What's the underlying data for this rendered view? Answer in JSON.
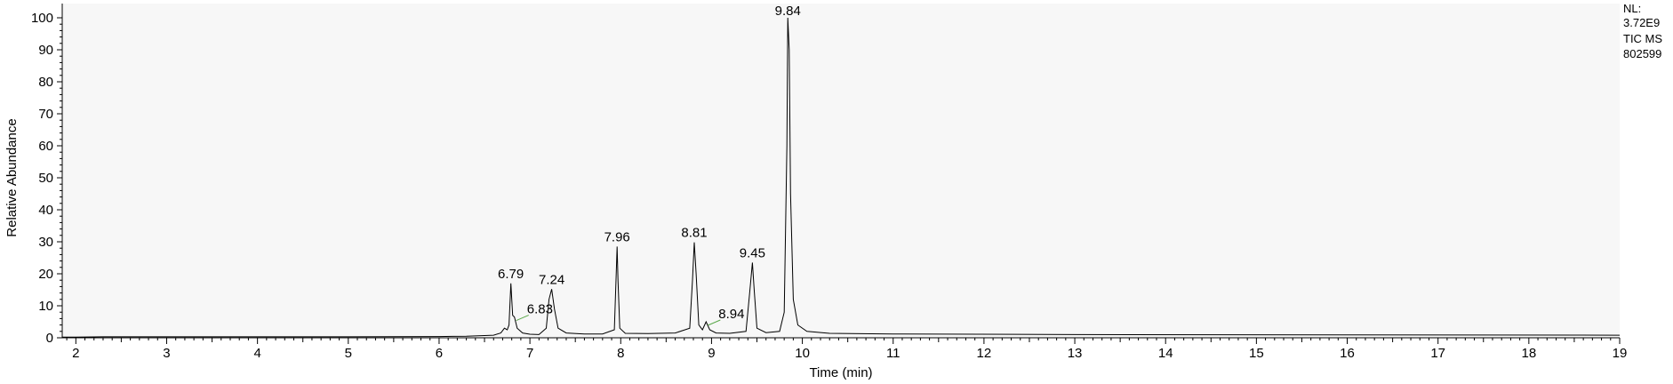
{
  "info": {
    "nl_label": "NL:",
    "nl_value": "3.72E9",
    "trace": "TIC  MS",
    "sample": "802599"
  },
  "chart_data": {
    "type": "line",
    "title": "",
    "xlabel": "Time (min)",
    "ylabel": "Relative Abundance",
    "xlim": [
      1.85,
      19.0
    ],
    "ylim": [
      0,
      100
    ],
    "x_ticks": [
      2,
      3,
      4,
      5,
      6,
      7,
      8,
      9,
      10,
      11,
      12,
      13,
      14,
      15,
      16,
      17,
      18,
      19
    ],
    "y_ticks": [
      0,
      10,
      20,
      30,
      40,
      50,
      60,
      70,
      80,
      90,
      100
    ],
    "grid": false,
    "background_color": "#f7f7f7",
    "trace_color": "#000000",
    "annotation_marker_color": "#5aa84a",
    "peaks": [
      {
        "x": 6.79,
        "y": 17.0,
        "label": "6.79"
      },
      {
        "x": 6.83,
        "y": 6.5,
        "label": "6.83"
      },
      {
        "x": 7.24,
        "y": 15.2,
        "label": "7.24"
      },
      {
        "x": 7.96,
        "y": 28.5,
        "label": "7.96"
      },
      {
        "x": 8.81,
        "y": 29.8,
        "label": "8.81"
      },
      {
        "x": 8.94,
        "y": 5.0,
        "label": "8.94"
      },
      {
        "x": 9.45,
        "y": 23.5,
        "label": "9.45"
      },
      {
        "x": 9.84,
        "y": 100.0,
        "label": "9.84"
      }
    ],
    "series": [
      {
        "x": [
          1.85,
          2.0,
          2.3,
          3.0,
          4.0,
          5.0,
          6.0,
          6.3,
          6.6,
          6.68,
          6.72,
          6.75,
          6.77,
          6.79,
          6.81,
          6.83,
          6.86,
          6.92,
          7.0,
          7.1,
          7.18,
          7.21,
          7.24,
          7.27,
          7.31,
          7.4,
          7.6,
          7.8,
          7.93,
          7.95,
          7.96,
          7.97,
          7.99,
          8.05,
          8.3,
          8.6,
          8.76,
          8.79,
          8.81,
          8.83,
          8.86,
          8.9,
          8.94,
          8.98,
          9.05,
          9.2,
          9.38,
          9.42,
          9.45,
          9.47,
          9.5,
          9.6,
          9.75,
          9.8,
          9.83,
          9.84,
          9.855,
          9.87,
          9.9,
          9.95,
          10.05,
          10.3,
          11.0,
          13.0,
          16.0,
          19.0
        ],
        "y": [
          0.2,
          0.2,
          0.3,
          0.3,
          0.3,
          0.3,
          0.4,
          0.5,
          0.8,
          1.5,
          3.0,
          2.5,
          4.0,
          17.0,
          7.0,
          6.5,
          3.0,
          1.5,
          1.1,
          1.0,
          3.0,
          12.0,
          15.2,
          9.0,
          3.0,
          1.5,
          1.2,
          1.2,
          2.5,
          20.0,
          28.5,
          18.0,
          3.0,
          1.4,
          1.3,
          1.5,
          3.0,
          18.0,
          29.8,
          20.0,
          4.0,
          2.5,
          5.0,
          2.5,
          1.5,
          1.4,
          2.0,
          14.0,
          23.5,
          15.0,
          3.0,
          1.6,
          2.0,
          8.0,
          60.0,
          100.0,
          90.0,
          45.0,
          12.0,
          4.0,
          2.0,
          1.4,
          1.2,
          1.0,
          0.9,
          0.8
        ]
      }
    ]
  }
}
